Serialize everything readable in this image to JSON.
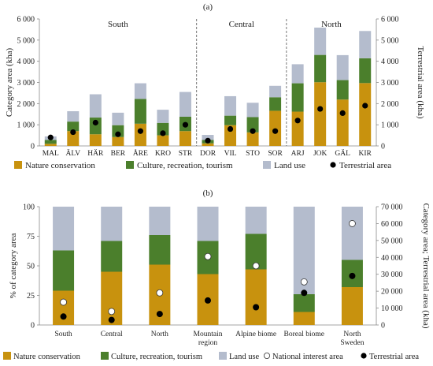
{
  "colors": {
    "nature": "#c8920e",
    "culture": "#4b7f2c",
    "landuse": "#b4bccd",
    "terrestrial": "#000000",
    "national": "#ffffff",
    "axis": "#888888"
  },
  "legend": {
    "nature": "Nature conservation",
    "culture": "Culture, recreation, tourism",
    "landuse": "Land use",
    "terrestrial": "Terrestrial area",
    "national": "National interest area"
  },
  "chart_data": [
    {
      "type": "bar",
      "stacked": true,
      "panel_label": "(a)",
      "ylabel": "Category area (kha)",
      "y2label": "Terrestrial area (kha)",
      "ylim": [
        0,
        6000
      ],
      "y2lim": [
        0,
        6000
      ],
      "yticks": [
        "0",
        "1 000",
        "2 000",
        "3 000",
        "4 000",
        "5 000",
        "6 000"
      ],
      "groups": [
        {
          "label": "South",
          "from": 0,
          "to": 6
        },
        {
          "label": "Central",
          "from": 7,
          "to": 10
        },
        {
          "label": "North",
          "from": 11,
          "to": 14
        }
      ],
      "categories": [
        "MAL",
        "ÄLV",
        "HÄR",
        "BER",
        "ÅRE",
        "KRO",
        "STR",
        "DOR",
        "VIL",
        "STO",
        "SOR",
        "ARJ",
        "JOK",
        "GÄL",
        "KIR"
      ],
      "series": [
        {
          "name": "Nature conservation",
          "values": [
            100,
            700,
            550,
            420,
            1050,
            500,
            700,
            120,
            980,
            640,
            1660,
            1620,
            3010,
            2190,
            2970
          ]
        },
        {
          "name": "Culture, recreation, tourism",
          "values": [
            180,
            450,
            790,
            560,
            1170,
            590,
            680,
            160,
            450,
            720,
            640,
            1340,
            1290,
            920,
            1170
          ]
        },
        {
          "name": "Land use",
          "values": [
            170,
            490,
            1100,
            590,
            740,
            620,
            1170,
            240,
            920,
            680,
            540,
            900,
            1290,
            1180,
            1290
          ]
        }
      ],
      "terrestrial": [
        400,
        650,
        1100,
        550,
        700,
        600,
        1000,
        250,
        800,
        700,
        700,
        1200,
        1750,
        1550,
        1900
      ]
    },
    {
      "type": "bar",
      "stacked": true,
      "panel_label": "(b)",
      "ylabel": "% of category area",
      "y2label": "Category area; Terrestrial area (kha)",
      "ylim": [
        0,
        100
      ],
      "y2lim": [
        0,
        70000
      ],
      "yticks": [
        "0",
        "25",
        "50",
        "75",
        "100"
      ],
      "y2ticks": [
        "0",
        "10 000",
        "20 000",
        "30 000",
        "40 000",
        "50 000",
        "60 000",
        "70 000"
      ],
      "categories": [
        "South",
        "Central",
        "North",
        "Mountain region",
        "Alpine biome",
        "Boreal biome",
        "North Sweden"
      ],
      "series": [
        {
          "name": "Nature conservation",
          "values": [
            29,
            45,
            51,
            43,
            47,
            11,
            32
          ]
        },
        {
          "name": "Culture, recreation, tourism",
          "values": [
            34,
            26,
            25,
            28,
            30,
            15,
            23
          ]
        },
        {
          "name": "Land use",
          "values": [
            37,
            29,
            24,
            29,
            23,
            74,
            45
          ]
        }
      ],
      "national_interest_area": [
        13500,
        8000,
        19000,
        40500,
        35000,
        25500,
        60000
      ],
      "terrestrial_area": [
        5000,
        3000,
        6500,
        14500,
        10500,
        19000,
        29000
      ]
    }
  ]
}
